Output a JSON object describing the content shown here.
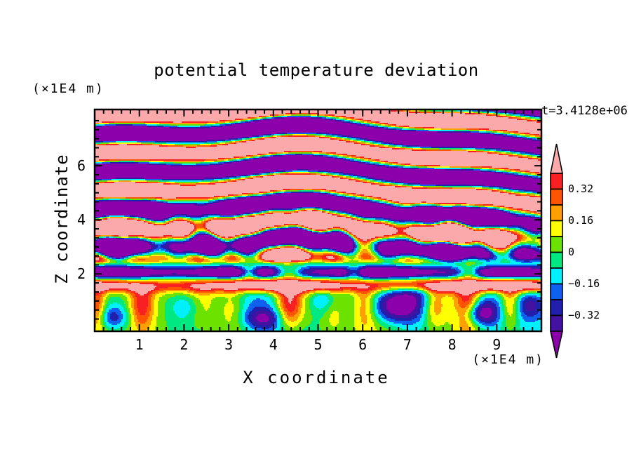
{
  "chart_data": {
    "type": "filled_contour",
    "title": "potential temperature deviation",
    "xlabel": "X coordinate",
    "ylabel": "Z coordinate",
    "x_unit": "(×1E4 m)",
    "z_unit": "(×1E4 m)",
    "time_annotation": "t=3.4128e+06",
    "x_range": [
      0,
      10
    ],
    "z_range": [
      0,
      8.1
    ],
    "x_major_ticks": [
      1,
      2,
      3,
      4,
      5,
      6,
      7,
      8,
      9
    ],
    "x_minor_step": 0.2,
    "z_major_ticks": [
      2,
      4,
      6
    ],
    "z_minor_step": 0.3333,
    "contour_levels": [
      -0.4,
      -0.32,
      -0.24,
      -0.16,
      -0.08,
      0,
      0.08,
      0.16,
      0.24,
      0.32,
      0.4
    ],
    "band_colors_low_to_high": [
      "#8C00AC",
      "#4412A0",
      "#2020AC",
      "#1060F0",
      "#00F0FF",
      "#00E882",
      "#6CE200",
      "#FFFF00",
      "#FFA000",
      "#FF5400",
      "#F82020",
      "#FCA9AC"
    ],
    "colorbar": {
      "labels": [
        {
          "text": "0.32",
          "value": 0.32
        },
        {
          "text": "0.16",
          "value": 0.16
        },
        {
          "text": "0",
          "value": 0
        },
        {
          "text": "−0.16",
          "value": -0.16
        },
        {
          "text": "−0.32",
          "value": -0.32
        }
      ],
      "over_arrow_color": "#FCA9AC",
      "under_arrow_color": "#8C00AC"
    },
    "field_model": {
      "background": {
        "base": -0.02,
        "waves": [
          [
            0.06,
            1.1,
            0.0,
            0.5
          ],
          [
            0.05,
            2.3,
            1.5,
            1.0
          ],
          [
            0.04,
            3.7,
            0.9,
            2.7
          ]
        ]
      },
      "plume_shape": {
        "z_peak": 0.85,
        "sigma": 0.95
      },
      "plumes": [
        {
          "x": 0.05,
          "a": 0.3,
          "w": 0.2
        },
        {
          "x": 1.05,
          "a": 0.36,
          "w": 0.28
        },
        {
          "x": 2.35,
          "a": 0.15,
          "w": 0.3
        },
        {
          "x": 3.1,
          "a": 0.12,
          "w": 0.25
        },
        {
          "x": 4.35,
          "a": 0.46,
          "w": 0.3
        },
        {
          "x": 5.35,
          "a": 0.16,
          "w": 0.22
        },
        {
          "x": 6.05,
          "a": 0.24,
          "w": 0.26
        },
        {
          "x": 7.6,
          "a": 0.22,
          "w": 0.24
        },
        {
          "x": 8.35,
          "a": 0.46,
          "w": 0.28
        },
        {
          "x": 9.3,
          "a": 0.32,
          "w": 0.22
        }
      ],
      "blobs": [
        {
          "x": 0.4,
          "z": 0.4,
          "a": -0.3,
          "rx": 0.35,
          "rz": 0.45
        },
        {
          "x": 2.1,
          "z": 0.8,
          "a": -0.16,
          "rx": 0.4,
          "rz": 0.5
        },
        {
          "x": 3.75,
          "z": 0.35,
          "a": -0.3,
          "rx": 0.45,
          "rz": 0.4
        },
        {
          "x": 5.15,
          "z": 1.05,
          "a": -0.2,
          "rx": 0.35,
          "rz": 0.5
        },
        {
          "x": 6.8,
          "z": 0.8,
          "a": -0.52,
          "rx": 0.6,
          "rz": 0.6
        },
        {
          "x": 7.2,
          "z": 1.4,
          "a": -0.25,
          "rx": 0.5,
          "rz": 0.45
        },
        {
          "x": 8.6,
          "z": 0.55,
          "a": -0.5,
          "rx": 0.4,
          "rz": 0.45
        },
        {
          "x": 9.75,
          "z": 0.85,
          "a": -0.3,
          "rx": 0.35,
          "rz": 0.55
        }
      ],
      "cap_band": {
        "z": 1.58,
        "sigma": 0.26,
        "a": 0.52,
        "mod_amp": 0.35,
        "mod_k": 1.3,
        "mod_phase": 2.6
      },
      "stable_band": {
        "z": 2.05,
        "sigma": 0.24,
        "a": -0.58,
        "mod_amp": 0.25,
        "mod_k": 2.1,
        "mod_phase": 1.0,
        "gaps": [
          {
            "x": 3.45,
            "w": 0.22,
            "d": 0.75
          },
          {
            "x": 4.35,
            "w": 0.3,
            "d": 0.95
          },
          {
            "x": 5.8,
            "w": 0.2,
            "d": 0.6
          },
          {
            "x": 8.35,
            "w": 0.28,
            "d": 0.9
          }
        ]
      },
      "gravity_waves": {
        "kz": 4.5,
        "z_ref": 2.1,
        "amp_base": 0.5,
        "amp_gain": 0.48,
        "amp_ramp_z": [
          2.3,
          3.5
        ],
        "phase_terms": [
          [
            1.15,
            0.6,
            1.8
          ],
          [
            0.5,
            1.5,
            4.0
          ]
        ],
        "phase_slope": 0.18,
        "amp_mod": [
          0.22,
          1.7,
          0.8
        ]
      },
      "turbulence": {
        "z_center": 3.3,
        "z_sigma": 1.15,
        "terms": [
          [
            0.34,
            2.6,
            3.1,
            1.0
          ],
          [
            0.27,
            4.2,
            -2.2,
            2.0
          ],
          [
            0.2,
            6.1,
            1.3,
            4.2
          ],
          [
            0.16,
            8.3,
            2.6,
            0.7
          ]
        ]
      },
      "blend": {
        "bl_lo": 1.35,
        "bl_hi": 1.8,
        "up_lo": 2.25,
        "up_hi": 2.7
      }
    }
  }
}
